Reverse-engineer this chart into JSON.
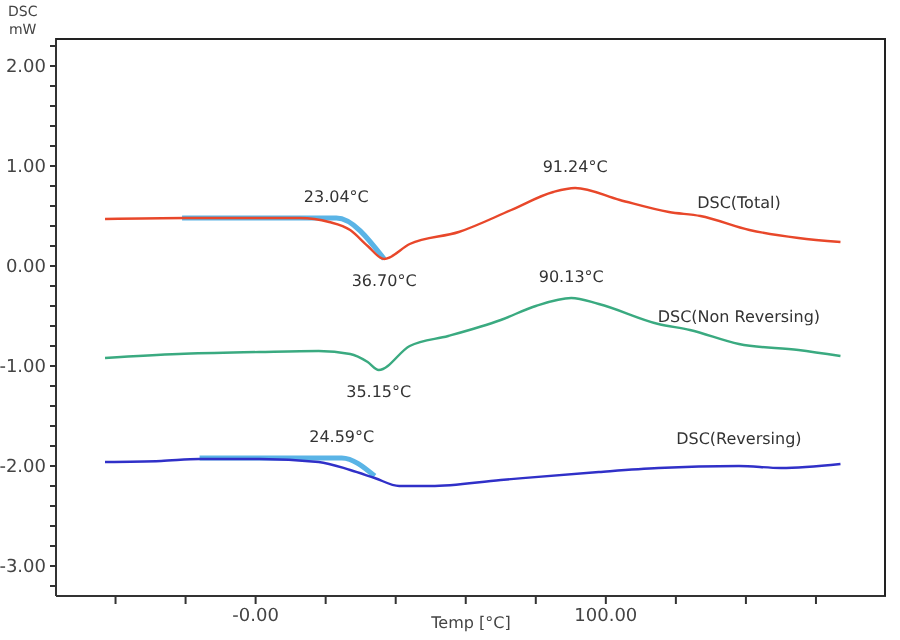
{
  "chart_data": {
    "type": "line",
    "xlabel": "Temp  [°C]",
    "ylabel": "DSC mW",
    "xlim": [
      -57,
      180
    ],
    "ylim": [
      -3.3,
      2.28
    ],
    "xticks": [
      {
        "value": -40,
        "label": null
      },
      {
        "value": -20,
        "label": null
      },
      {
        "value": 0,
        "label": "-0.00"
      },
      {
        "value": 20,
        "label": null
      },
      {
        "value": 40,
        "label": null
      },
      {
        "value": 60,
        "label": null
      },
      {
        "value": 80,
        "label": null
      },
      {
        "value": 100,
        "label": "100.00"
      },
      {
        "value": 120,
        "label": null
      },
      {
        "value": 140,
        "label": null
      },
      {
        "value": 160,
        "label": null
      }
    ],
    "yticks": [
      {
        "value": -3.2,
        "label": null
      },
      {
        "value": -3,
        "label": "-3.00"
      },
      {
        "value": -2.8,
        "label": null
      },
      {
        "value": -2.6,
        "label": null
      },
      {
        "value": -2.4,
        "label": null
      },
      {
        "value": -2.2,
        "label": null
      },
      {
        "value": -2,
        "label": "-2.00"
      },
      {
        "value": -1.8,
        "label": null
      },
      {
        "value": -1.6,
        "label": null
      },
      {
        "value": -1.4,
        "label": null
      },
      {
        "value": -1.2,
        "label": null
      },
      {
        "value": -1,
        "label": "-1.00"
      },
      {
        "value": -0.8,
        "label": null
      },
      {
        "value": -0.6,
        "label": null
      },
      {
        "value": -0.4,
        "label": null
      },
      {
        "value": -0.2,
        "label": null
      },
      {
        "value": 0,
        "label": "0.00"
      },
      {
        "value": 0.2,
        "label": null
      },
      {
        "value": 0.4,
        "label": null
      },
      {
        "value": 0.6,
        "label": null
      },
      {
        "value": 0.8,
        "label": null
      },
      {
        "value": 1,
        "label": "1.00"
      },
      {
        "value": 1.2,
        "label": null
      },
      {
        "value": 1.4,
        "label": null
      },
      {
        "value": 1.6,
        "label": null
      },
      {
        "value": 1.8,
        "label": null
      },
      {
        "value": 2,
        "label": "2.00"
      },
      {
        "value": 2.2,
        "label": null
      }
    ],
    "grid": false,
    "legend": false,
    "marker": "none",
    "line_style": "solid",
    "series": [
      {
        "name": "DSC(Total)",
        "color": "#e8472a",
        "x": [
          -43,
          -20,
          0,
          12.6,
          21,
          27,
          32,
          36.7,
          44,
          58,
          73,
          85,
          91.24,
          104,
          118,
          127,
          141,
          155,
          167
        ],
        "values": [
          0.47,
          0.48,
          0.48,
          0.48,
          0.44,
          0.36,
          0.2,
          0.07,
          0.22,
          0.34,
          0.56,
          0.74,
          0.78,
          0.66,
          0.54,
          0.5,
          0.36,
          0.28,
          0.24
        ]
      },
      {
        "name": "DSC(Non Reversing)",
        "color": "#3aaa80",
        "x": [
          -43,
          -22,
          1,
          18,
          27,
          32,
          35.15,
          44,
          55,
          70,
          80,
          90.13,
          98,
          115,
          124,
          138,
          155,
          167
        ],
        "values": [
          -0.92,
          -0.88,
          -0.86,
          -0.85,
          -0.88,
          -0.96,
          -1.04,
          -0.8,
          -0.7,
          -0.54,
          -0.4,
          -0.32,
          -0.38,
          -0.58,
          -0.64,
          -0.78,
          -0.84,
          -0.9
        ]
      },
      {
        "name": "DSC(Reversing)",
        "color": "#3030c8",
        "x": [
          -43,
          -27,
          -16,
          1,
          18,
          27,
          34,
          41,
          50,
          70,
          98,
          115,
          138,
          150,
          167
        ],
        "values": [
          -1.96,
          -1.95,
          -1.93,
          -1.93,
          -1.96,
          -2.04,
          -2.12,
          -2.2,
          -2.2,
          -2.14,
          -2.06,
          -2.02,
          -2,
          -2.02,
          -1.98
        ]
      },
      {
        "color": "#5ab4e6",
        "x": [
          -21,
          23.04,
          36.7
        ],
        "values": [
          0.48,
          0.48,
          0.07
        ]
      },
      {
        "color": "#5ab4e6",
        "x": [
          -16,
          24.59,
          34
        ],
        "values": [
          -1.92,
          -1.92,
          -2.1
        ]
      }
    ],
    "annotations": [
      {
        "text": "23.04°C",
        "x": 23.04,
        "y": 0.48
      },
      {
        "text": "36.70°C",
        "x": 36.7,
        "y": 0.07
      },
      {
        "text": "91.24°C",
        "x": 91.24,
        "y": 0.78
      },
      {
        "text": "90.13°C",
        "x": 90.13,
        "y": -0.32
      },
      {
        "text": "35.15°C",
        "x": 35.15,
        "y": -1.04
      },
      {
        "text": "24.59°C",
        "x": 24.59,
        "y": -1.92
      }
    ]
  }
}
